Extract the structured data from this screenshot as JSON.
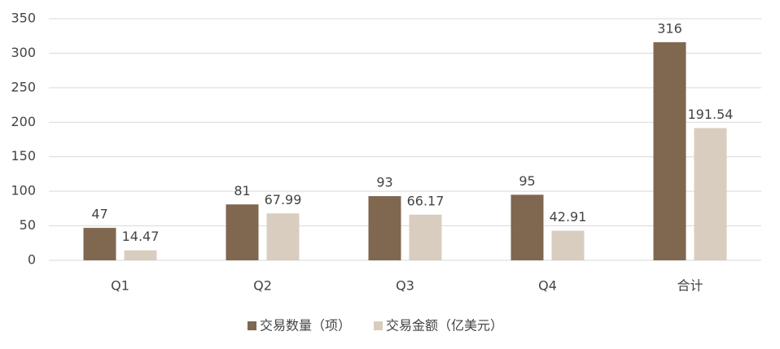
{
  "chart_data": {
    "type": "bar",
    "categories": [
      "Q1",
      "Q2",
      "Q3",
      "Q4",
      "合计"
    ],
    "series": [
      {
        "name": "交易数量（项）",
        "color": "#7f6750",
        "values": [
          47,
          81,
          93,
          95,
          316
        ]
      },
      {
        "name": "交易金额（亿美元）",
        "color": "#d9cdbf",
        "values": [
          14.47,
          67.99,
          66.17,
          42.91,
          191.54
        ]
      }
    ],
    "ylim": [
      0,
      350
    ],
    "yticks": [
      0,
      50,
      100,
      150,
      200,
      250,
      300,
      350
    ],
    "grid": true,
    "legend": "bottom"
  }
}
